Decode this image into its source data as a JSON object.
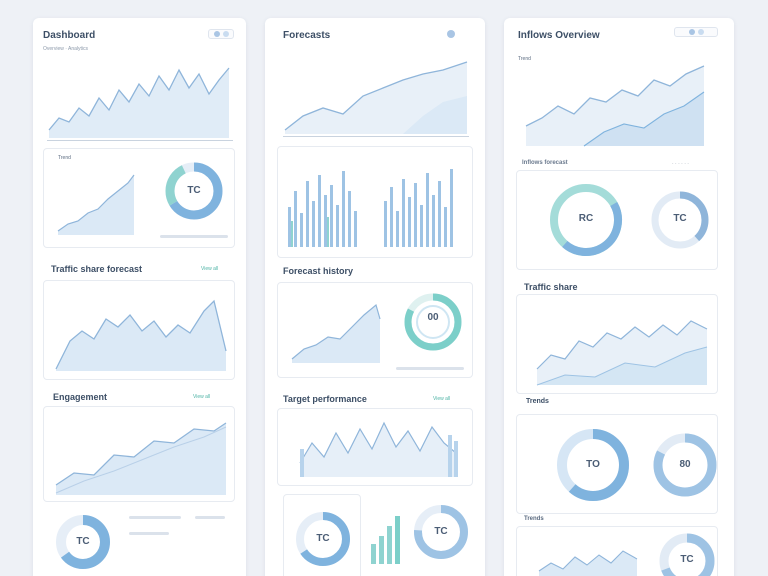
{
  "columns": [
    {
      "title": "Dashboard",
      "sub": "Overview · Analytics",
      "sections": [
        {
          "title": "",
          "sub": "Trend"
        },
        {
          "title": "Traffic share forecast",
          "tag": "View all"
        },
        {
          "title": "Engagement",
          "tag": "View all"
        }
      ],
      "donuts": [
        "TC",
        "TC"
      ]
    },
    {
      "title": "Forecasts",
      "sections": [
        {
          "title": "Forecast history"
        },
        {
          "title": "Target performance",
          "tag": "View all"
        }
      ],
      "donuts": [
        "00",
        "TC",
        "TC"
      ]
    },
    {
      "title": "Inflows Overview",
      "sections": [
        {
          "sub": "Trend"
        },
        {
          "title": "Inflows forecast"
        },
        {
          "title": "Traffic share"
        },
        {
          "title": "Trends"
        }
      ],
      "donuts": [
        "RC",
        "TC",
        "TO",
        "80",
        "TC"
      ]
    }
  ],
  "icons": [
    "settings-icon",
    "toggle-icon",
    "info-icon"
  ],
  "colors": {
    "accent": "#7fb3de",
    "accent_dark": "#5b94c8",
    "teal": "#8fd3d0",
    "fill": "#dbe9f6",
    "line": "#8fb5da"
  }
}
